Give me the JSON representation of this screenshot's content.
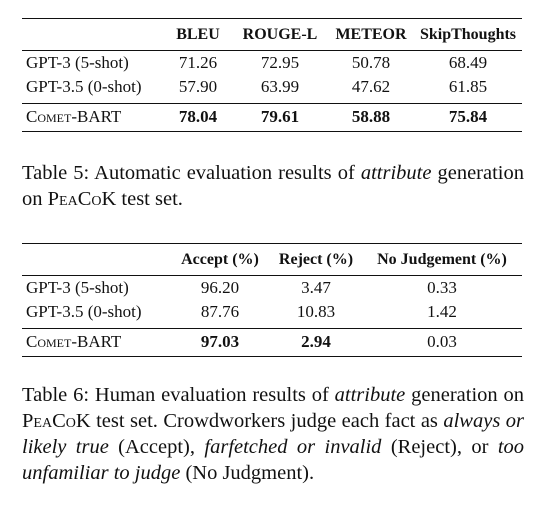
{
  "table5": {
    "headers": [
      "",
      "BLEU",
      "ROUGE-L",
      "METEOR",
      "SkipThoughts"
    ],
    "rows": [
      {
        "system": "GPT-3 (5-shot)",
        "values": [
          "71.26",
          "72.95",
          "50.78",
          "68.49"
        ]
      },
      {
        "system": "GPT-3.5 (0-shot)",
        "values": [
          "57.90",
          "63.99",
          "47.62",
          "61.85"
        ]
      }
    ],
    "best_row": {
      "system": "Comet-BART",
      "values": [
        "78.04",
        "79.61",
        "58.88",
        "75.84"
      ]
    },
    "caption": {
      "prefix": "Table 5: Automatic evaluation results of ",
      "emph": "attribute",
      "mid": " generation on ",
      "dataset": "PeaCoK",
      "suffix": " test set."
    }
  },
  "table6": {
    "headers": [
      "",
      "Accept (%)",
      "Reject (%)",
      "No Judgement (%)"
    ],
    "rows": [
      {
        "system": "GPT-3 (5-shot)",
        "values": [
          "96.20",
          "3.47",
          "0.33"
        ]
      },
      {
        "system": "GPT-3.5 (0-shot)",
        "values": [
          "87.76",
          "10.83",
          "1.42"
        ]
      }
    ],
    "best_row": {
      "system": "Comet-BART",
      "values": [
        "97.03",
        "2.94",
        "0.03"
      ]
    },
    "caption": {
      "prefix": "Table 6: Human evaluation results of ",
      "emph": "attribute",
      "mid": " generation on ",
      "dataset": "PeaCoK",
      "mid2": " test set. Crowdworkers judge each fact as ",
      "emph2": "always or likely true",
      "mid3": " (Accept), ",
      "emph3": "farfetched or invalid",
      "mid4": " (Reject), or ",
      "emph4": "too unfamiliar to judge",
      "suffix": " (No Judgment)."
    }
  }
}
